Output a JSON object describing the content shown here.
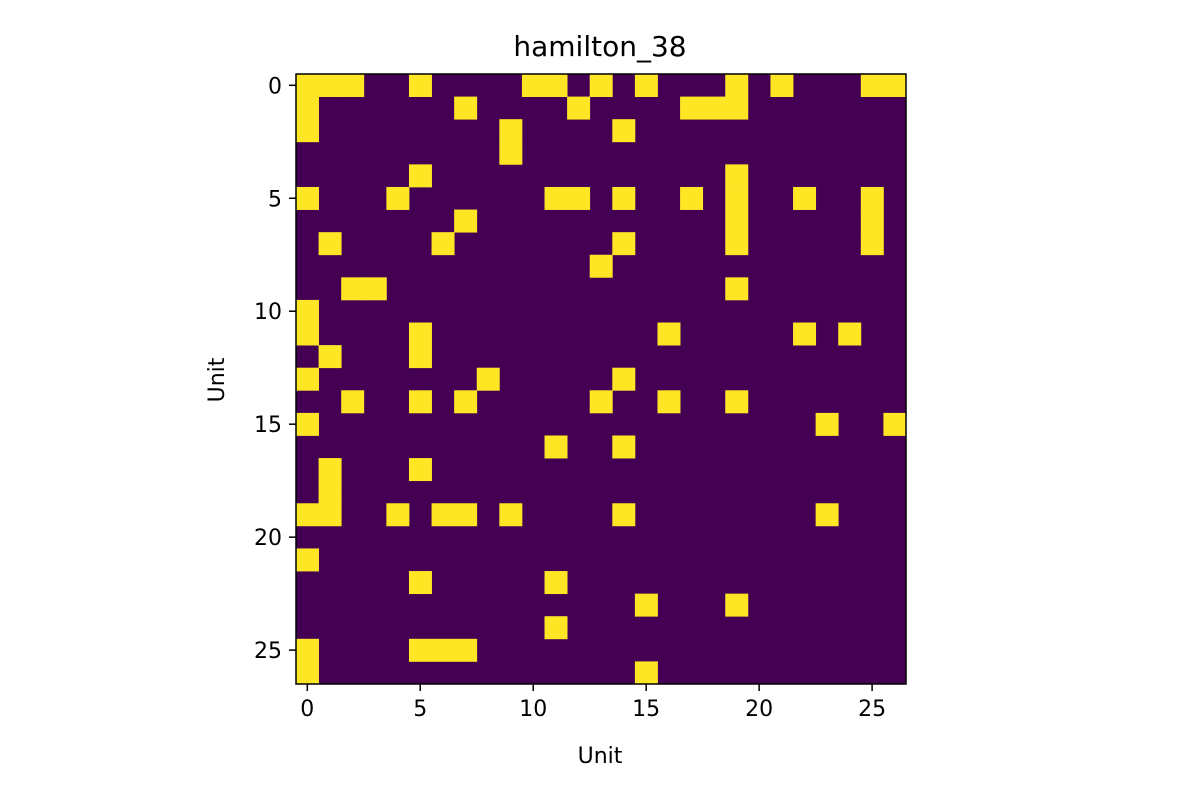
{
  "chart_data": {
    "type": "heatmap",
    "title": "hamilton_38",
    "xlabel": "Unit",
    "ylabel": "Unit",
    "rows": 27,
    "cols": 27,
    "xticks": [
      0,
      5,
      10,
      15,
      20,
      25
    ],
    "yticks": [
      0,
      5,
      10,
      15,
      20,
      25
    ],
    "colormap": {
      "0": "#440154",
      "1": "#fde725"
    },
    "grid": false,
    "cells": [
      [
        0,
        0
      ],
      [
        0,
        1
      ],
      [
        0,
        2
      ],
      [
        0,
        5
      ],
      [
        0,
        10
      ],
      [
        0,
        11
      ],
      [
        0,
        13
      ],
      [
        0,
        15
      ],
      [
        0,
        19
      ],
      [
        0,
        21
      ],
      [
        0,
        25
      ],
      [
        0,
        26
      ],
      [
        1,
        0
      ],
      [
        1,
        7
      ],
      [
        1,
        12
      ],
      [
        1,
        17
      ],
      [
        1,
        18
      ],
      [
        1,
        19
      ],
      [
        2,
        0
      ],
      [
        2,
        9
      ],
      [
        2,
        14
      ],
      [
        3,
        9
      ],
      [
        4,
        5
      ],
      [
        4,
        19
      ],
      [
        5,
        0
      ],
      [
        5,
        4
      ],
      [
        5,
        11
      ],
      [
        5,
        12
      ],
      [
        5,
        14
      ],
      [
        5,
        17
      ],
      [
        5,
        19
      ],
      [
        5,
        22
      ],
      [
        5,
        25
      ],
      [
        6,
        7
      ],
      [
        6,
        19
      ],
      [
        6,
        25
      ],
      [
        7,
        1
      ],
      [
        7,
        6
      ],
      [
        7,
        14
      ],
      [
        7,
        19
      ],
      [
        7,
        25
      ],
      [
        8,
        13
      ],
      [
        9,
        2
      ],
      [
        9,
        3
      ],
      [
        9,
        19
      ],
      [
        10,
        0
      ],
      [
        11,
        0
      ],
      [
        11,
        5
      ],
      [
        11,
        16
      ],
      [
        11,
        22
      ],
      [
        11,
        24
      ],
      [
        12,
        1
      ],
      [
        12,
        5
      ],
      [
        13,
        0
      ],
      [
        13,
        8
      ],
      [
        13,
        14
      ],
      [
        14,
        2
      ],
      [
        14,
        5
      ],
      [
        14,
        7
      ],
      [
        14,
        13
      ],
      [
        14,
        16
      ],
      [
        14,
        19
      ],
      [
        15,
        0
      ],
      [
        15,
        23
      ],
      [
        15,
        26
      ],
      [
        16,
        11
      ],
      [
        16,
        14
      ],
      [
        17,
        1
      ],
      [
        17,
        5
      ],
      [
        18,
        1
      ],
      [
        19,
        0
      ],
      [
        19,
        1
      ],
      [
        19,
        4
      ],
      [
        19,
        6
      ],
      [
        19,
        7
      ],
      [
        19,
        9
      ],
      [
        19,
        14
      ],
      [
        19,
        23
      ],
      [
        21,
        0
      ],
      [
        22,
        5
      ],
      [
        22,
        11
      ],
      [
        23,
        15
      ],
      [
        23,
        19
      ],
      [
        24,
        11
      ],
      [
        25,
        0
      ],
      [
        25,
        5
      ],
      [
        25,
        6
      ],
      [
        25,
        7
      ],
      [
        26,
        0
      ],
      [
        26,
        15
      ]
    ]
  }
}
